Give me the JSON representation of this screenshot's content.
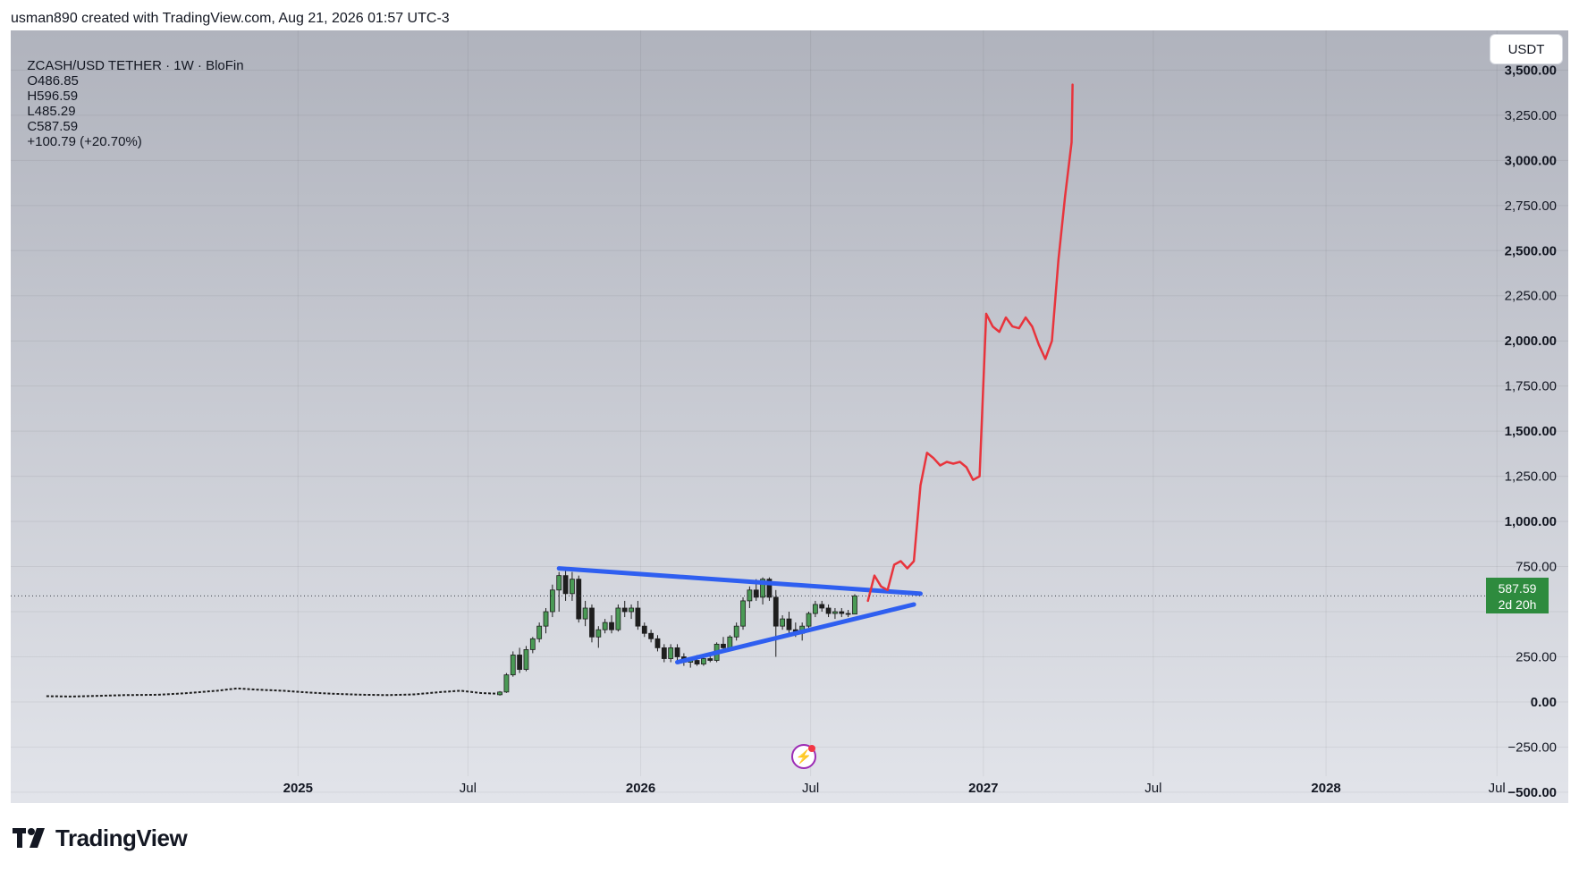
{
  "header": {
    "credit": "usman890 created with TradingView.com, Aug 21, 2026 01:57 UTC-3"
  },
  "legend": {
    "symbol": "ZCASH/USD TETHER · 1W · BloFin",
    "open": "O486.85",
    "high": "H596.59",
    "low": "L485.29",
    "close": "C587.59",
    "change": "+100.79 (+20.70%)"
  },
  "currency_button": {
    "label": "USDT"
  },
  "price_tag": {
    "price": "587.59",
    "countdown": "2d 20h"
  },
  "branding": {
    "logo_text": "TradingView"
  },
  "colors": {
    "background_top": "#b0b3bd",
    "background_bottom": "#e2e4ea",
    "projection_line": "#e8343c",
    "trendline": "#2f5ff0",
    "candle_up": "#4a9a55",
    "candle_down": "#1e1e1e",
    "price_tag": "#2e8b3e"
  },
  "chart_data": {
    "type": "candlestick",
    "timeframe": "1W",
    "current_price": 587.59,
    "y_axis": {
      "range": [
        -560,
        3720
      ],
      "ticks": [
        -500,
        -250,
        0,
        250,
        500,
        750,
        1000,
        1250,
        1500,
        1750,
        2000,
        2250,
        2500,
        2750,
        3000,
        3250,
        3500
      ],
      "tick_labels": [
        "−500.00",
        "−250.00",
        "0.00",
        "250.00",
        "",
        "750.00",
        "1,000.00",
        "1,250.00",
        "1,500.00",
        "1,750.00",
        "2,000.00",
        "2,250.00",
        "2,500.00",
        "2,750.00",
        "3,000.00",
        "3,250.00",
        "3,500.00"
      ],
      "bold_ticks": [
        -500,
        0,
        1000,
        1500,
        2000,
        2500,
        3000,
        3500
      ]
    },
    "x_axis": {
      "range": [
        "2024-03-01",
        "2028-09-15"
      ],
      "ticks": [
        {
          "date": "2025-01-01",
          "label": "2025",
          "bold": true
        },
        {
          "date": "2025-07-01",
          "label": "Jul",
          "bold": false
        },
        {
          "date": "2026-01-01",
          "label": "2026",
          "bold": true
        },
        {
          "date": "2026-07-01",
          "label": "Jul",
          "bold": false
        },
        {
          "date": "2027-01-01",
          "label": "2027",
          "bold": true
        },
        {
          "date": "2027-07-01",
          "label": "Jul",
          "bold": false
        },
        {
          "date": "2028-01-01",
          "label": "2028",
          "bold": true
        },
        {
          "date": "2028-07-01",
          "label": "Jul",
          "bold": false
        }
      ]
    },
    "candles": [
      {
        "d": "2025-08-04",
        "o": 40,
        "h": 60,
        "l": 35,
        "c": 55
      },
      {
        "d": "2025-08-11",
        "o": 55,
        "h": 160,
        "l": 50,
        "c": 150
      },
      {
        "d": "2025-08-18",
        "o": 150,
        "h": 280,
        "l": 140,
        "c": 260
      },
      {
        "d": "2025-08-25",
        "o": 260,
        "h": 300,
        "l": 160,
        "c": 180
      },
      {
        "d": "2025-09-01",
        "o": 180,
        "h": 310,
        "l": 170,
        "c": 290
      },
      {
        "d": "2025-09-08",
        "o": 290,
        "h": 360,
        "l": 270,
        "c": 350
      },
      {
        "d": "2025-09-15",
        "o": 350,
        "h": 440,
        "l": 330,
        "c": 420
      },
      {
        "d": "2025-09-22",
        "o": 420,
        "h": 520,
        "l": 380,
        "c": 500
      },
      {
        "d": "2025-09-29",
        "o": 500,
        "h": 650,
        "l": 470,
        "c": 620
      },
      {
        "d": "2025-10-06",
        "o": 620,
        "h": 720,
        "l": 500,
        "c": 700
      },
      {
        "d": "2025-10-13",
        "o": 700,
        "h": 740,
        "l": 560,
        "c": 600
      },
      {
        "d": "2025-10-20",
        "o": 600,
        "h": 720,
        "l": 560,
        "c": 680
      },
      {
        "d": "2025-10-27",
        "o": 680,
        "h": 700,
        "l": 440,
        "c": 460
      },
      {
        "d": "2025-11-03",
        "o": 460,
        "h": 560,
        "l": 420,
        "c": 520
      },
      {
        "d": "2025-11-10",
        "o": 520,
        "h": 540,
        "l": 330,
        "c": 360
      },
      {
        "d": "2025-11-17",
        "o": 360,
        "h": 420,
        "l": 300,
        "c": 400
      },
      {
        "d": "2025-11-24",
        "o": 400,
        "h": 460,
        "l": 380,
        "c": 440
      },
      {
        "d": "2025-12-01",
        "o": 440,
        "h": 480,
        "l": 380,
        "c": 400
      },
      {
        "d": "2025-12-08",
        "o": 400,
        "h": 540,
        "l": 390,
        "c": 520
      },
      {
        "d": "2025-12-15",
        "o": 520,
        "h": 560,
        "l": 470,
        "c": 500
      },
      {
        "d": "2025-12-22",
        "o": 500,
        "h": 540,
        "l": 460,
        "c": 520
      },
      {
        "d": "2025-12-29",
        "o": 520,
        "h": 560,
        "l": 400,
        "c": 420
      },
      {
        "d": "2026-01-05",
        "o": 420,
        "h": 440,
        "l": 360,
        "c": 380
      },
      {
        "d": "2026-01-12",
        "o": 380,
        "h": 400,
        "l": 330,
        "c": 350
      },
      {
        "d": "2026-01-19",
        "o": 350,
        "h": 370,
        "l": 280,
        "c": 300
      },
      {
        "d": "2026-01-26",
        "o": 300,
        "h": 320,
        "l": 220,
        "c": 240
      },
      {
        "d": "2026-02-02",
        "o": 240,
        "h": 320,
        "l": 220,
        "c": 300
      },
      {
        "d": "2026-02-09",
        "o": 300,
        "h": 320,
        "l": 230,
        "c": 250
      },
      {
        "d": "2026-02-16",
        "o": 250,
        "h": 270,
        "l": 200,
        "c": 220
      },
      {
        "d": "2026-02-23",
        "o": 220,
        "h": 250,
        "l": 190,
        "c": 230
      },
      {
        "d": "2026-03-02",
        "o": 230,
        "h": 260,
        "l": 200,
        "c": 210
      },
      {
        "d": "2026-03-09",
        "o": 210,
        "h": 260,
        "l": 200,
        "c": 240
      },
      {
        "d": "2026-03-16",
        "o": 240,
        "h": 270,
        "l": 220,
        "c": 230
      },
      {
        "d": "2026-03-23",
        "o": 230,
        "h": 330,
        "l": 220,
        "c": 320
      },
      {
        "d": "2026-03-30",
        "o": 320,
        "h": 360,
        "l": 280,
        "c": 300
      },
      {
        "d": "2026-04-06",
        "o": 300,
        "h": 370,
        "l": 290,
        "c": 360
      },
      {
        "d": "2026-04-13",
        "o": 360,
        "h": 440,
        "l": 340,
        "c": 420
      },
      {
        "d": "2026-04-20",
        "o": 420,
        "h": 580,
        "l": 400,
        "c": 560
      },
      {
        "d": "2026-04-27",
        "o": 560,
        "h": 640,
        "l": 520,
        "c": 620
      },
      {
        "d": "2026-05-04",
        "o": 620,
        "h": 680,
        "l": 560,
        "c": 580
      },
      {
        "d": "2026-05-11",
        "o": 580,
        "h": 690,
        "l": 540,
        "c": 680
      },
      {
        "d": "2026-05-18",
        "o": 680,
        "h": 690,
        "l": 560,
        "c": 580
      },
      {
        "d": "2026-05-25",
        "o": 580,
        "h": 620,
        "l": 250,
        "c": 420
      },
      {
        "d": "2026-06-01",
        "o": 420,
        "h": 480,
        "l": 400,
        "c": 460
      },
      {
        "d": "2026-06-08",
        "o": 460,
        "h": 500,
        "l": 380,
        "c": 400
      },
      {
        "d": "2026-06-15",
        "o": 400,
        "h": 440,
        "l": 360,
        "c": 380
      },
      {
        "d": "2026-06-22",
        "o": 380,
        "h": 440,
        "l": 340,
        "c": 420
      },
      {
        "d": "2026-06-29",
        "o": 420,
        "h": 500,
        "l": 410,
        "c": 490
      },
      {
        "d": "2026-07-06",
        "o": 490,
        "h": 560,
        "l": 470,
        "c": 540
      },
      {
        "d": "2026-07-13",
        "o": 540,
        "h": 560,
        "l": 500,
        "c": 520
      },
      {
        "d": "2026-07-20",
        "o": 520,
        "h": 540,
        "l": 470,
        "c": 490
      },
      {
        "d": "2026-07-27",
        "o": 490,
        "h": 520,
        "l": 460,
        "c": 500
      },
      {
        "d": "2026-08-03",
        "o": 500,
        "h": 520,
        "l": 470,
        "c": 490
      },
      {
        "d": "2026-08-10",
        "o": 490,
        "h": 510,
        "l": 470,
        "c": 487
      },
      {
        "d": "2026-08-17",
        "o": 486.85,
        "h": 596.59,
        "l": 485.29,
        "c": 587.59
      }
    ],
    "pre_history": [
      [
        "2024-04-08",
        32
      ],
      [
        "2024-05-06",
        30
      ],
      [
        "2024-06-03",
        34
      ],
      [
        "2024-07-01",
        38
      ],
      [
        "2024-08-05",
        40
      ],
      [
        "2024-09-02",
        48
      ],
      [
        "2024-10-07",
        62
      ],
      [
        "2024-10-28",
        75
      ],
      [
        "2024-11-18",
        68
      ],
      [
        "2024-12-16",
        62
      ],
      [
        "2025-01-13",
        52
      ],
      [
        "2025-02-10",
        45
      ],
      [
        "2025-03-10",
        40
      ],
      [
        "2025-04-07",
        38
      ],
      [
        "2025-05-05",
        42
      ],
      [
        "2025-06-02",
        55
      ],
      [
        "2025-06-23",
        62
      ],
      [
        "2025-07-14",
        50
      ],
      [
        "2025-08-04",
        45
      ]
    ],
    "trendlines": [
      {
        "name": "upper",
        "from": [
          "2025-10-06",
          740
        ],
        "to": [
          "2026-10-26",
          600
        ]
      },
      {
        "name": "lower",
        "from": [
          "2026-02-09",
          220
        ],
        "to": [
          "2026-10-19",
          540
        ]
      }
    ],
    "projection": [
      [
        "2026-08-31",
        560
      ],
      [
        "2026-09-07",
        700
      ],
      [
        "2026-09-14",
        640
      ],
      [
        "2026-09-21",
        620
      ],
      [
        "2026-09-28",
        760
      ],
      [
        "2026-10-05",
        780
      ],
      [
        "2026-10-12",
        740
      ],
      [
        "2026-10-19",
        780
      ],
      [
        "2026-10-26",
        1200
      ],
      [
        "2026-11-02",
        1380
      ],
      [
        "2026-11-09",
        1350
      ],
      [
        "2026-11-16",
        1310
      ],
      [
        "2026-11-23",
        1330
      ],
      [
        "2026-11-30",
        1320
      ],
      [
        "2026-12-07",
        1330
      ],
      [
        "2026-12-14",
        1300
      ],
      [
        "2026-12-21",
        1230
      ],
      [
        "2026-12-28",
        1250
      ],
      [
        "2027-01-04",
        2150
      ],
      [
        "2027-01-11",
        2080
      ],
      [
        "2027-01-18",
        2050
      ],
      [
        "2027-01-25",
        2130
      ],
      [
        "2027-02-01",
        2080
      ],
      [
        "2027-02-08",
        2070
      ],
      [
        "2027-02-15",
        2130
      ],
      [
        "2027-02-22",
        2080
      ],
      [
        "2027-03-01",
        1980
      ],
      [
        "2027-03-08",
        1900
      ],
      [
        "2027-03-15",
        2000
      ],
      [
        "2027-03-22",
        2450
      ],
      [
        "2027-03-29",
        2800
      ],
      [
        "2027-04-05",
        3100
      ],
      [
        "2027-04-06",
        3420
      ]
    ]
  }
}
